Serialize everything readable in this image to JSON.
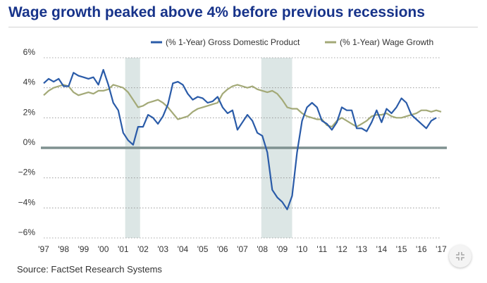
{
  "title": "Wage growth peaked above 4% before previous recessions",
  "source": "Source: FactSet Research Systems",
  "colors": {
    "gdp": "#2a5ba8",
    "wage": "#a3a977",
    "zero_line": "#7f9190",
    "recession": "#dce6e5",
    "title": "#17338a"
  },
  "icons": {
    "zoom": "collapse-arrows-icon"
  },
  "chart_data": {
    "type": "line",
    "title": "Wage growth peaked above 4% before previous recessions",
    "xlabel": "",
    "ylabel": "",
    "xlim": [
      1997.0,
      2017.0
    ],
    "ylim": [
      -6,
      6
    ],
    "x_ticks": [
      "'97",
      "'98",
      "'99",
      "'00",
      "'01",
      "'02",
      "'03",
      "'04",
      "'05",
      "'06",
      "'07",
      "'08",
      "'09",
      "'10",
      "'11",
      "'12",
      "'13",
      "'14",
      "'15",
      "'16",
      "'17"
    ],
    "y_ticks": [
      "6%",
      "4%",
      "2%",
      "0%",
      "−2%",
      "−4%",
      "−6%"
    ],
    "y_tick_values": [
      6,
      4,
      2,
      0,
      -2,
      -4,
      -6
    ],
    "legend_position": "top-right",
    "grid": "horizontal dotted",
    "recessions": [
      [
        2001.1,
        2001.85
      ],
      [
        2007.95,
        2009.5
      ]
    ],
    "series": [
      {
        "name": "(% 1-Year) Gross Domestic Product",
        "x": [
          1997.0,
          1997.25,
          1997.5,
          1997.75,
          1998.0,
          1998.25,
          1998.5,
          1998.75,
          1999.0,
          1999.25,
          1999.5,
          1999.75,
          2000.0,
          2000.25,
          2000.5,
          2000.75,
          2001.0,
          2001.25,
          2001.5,
          2001.75,
          2002.0,
          2002.25,
          2002.5,
          2002.75,
          2003.0,
          2003.25,
          2003.5,
          2003.75,
          2004.0,
          2004.25,
          2004.5,
          2004.75,
          2005.0,
          2005.25,
          2005.5,
          2005.75,
          2006.0,
          2006.25,
          2006.5,
          2006.75,
          2007.0,
          2007.25,
          2007.5,
          2007.75,
          2008.0,
          2008.25,
          2008.5,
          2008.75,
          2009.0,
          2009.25,
          2009.5,
          2009.75,
          2010.0,
          2010.25,
          2010.5,
          2010.75,
          2011.0,
          2011.25,
          2011.5,
          2011.75,
          2012.0,
          2012.25,
          2012.5,
          2012.75,
          2013.0,
          2013.25,
          2013.5,
          2013.75,
          2014.0,
          2014.25,
          2014.5,
          2014.75,
          2015.0,
          2015.25,
          2015.5,
          2015.75,
          2016.0,
          2016.25,
          2016.5,
          2016.75
        ],
        "values": [
          4.3,
          4.6,
          4.4,
          4.6,
          4.1,
          4.1,
          5.0,
          4.8,
          4.7,
          4.6,
          4.7,
          4.2,
          5.2,
          4.2,
          3.0,
          2.5,
          1.0,
          0.5,
          0.2,
          1.4,
          1.4,
          2.2,
          2.0,
          1.6,
          2.1,
          2.9,
          4.3,
          4.4,
          4.2,
          3.6,
          3.2,
          3.4,
          3.3,
          3.0,
          3.1,
          3.4,
          2.7,
          2.3,
          2.5,
          1.2,
          1.7,
          2.2,
          1.8,
          1.0,
          0.8,
          -0.3,
          -2.8,
          -3.3,
          -3.6,
          -4.1,
          -3.2,
          -0.3,
          1.8,
          2.7,
          3.0,
          2.7,
          1.8,
          1.6,
          1.2,
          1.7,
          2.7,
          2.5,
          2.5,
          1.3,
          1.3,
          1.1,
          1.7,
          2.5,
          1.7,
          2.6,
          2.3,
          2.7,
          3.3,
          3.0,
          2.2,
          1.9,
          1.6,
          1.3,
          1.8,
          2.0
        ]
      },
      {
        "name": "(% 1-Year) Wage Growth",
        "x": [
          1997.0,
          1997.25,
          1997.5,
          1997.75,
          1998.0,
          1998.25,
          1998.5,
          1998.75,
          1999.0,
          1999.25,
          1999.5,
          1999.75,
          2000.0,
          2000.25,
          2000.5,
          2000.75,
          2001.0,
          2001.25,
          2001.5,
          2001.75,
          2002.0,
          2002.25,
          2002.5,
          2002.75,
          2003.0,
          2003.25,
          2003.5,
          2003.75,
          2004.0,
          2004.25,
          2004.5,
          2004.75,
          2005.0,
          2005.25,
          2005.5,
          2005.75,
          2006.0,
          2006.25,
          2006.5,
          2006.75,
          2007.0,
          2007.25,
          2007.5,
          2007.75,
          2008.0,
          2008.25,
          2008.5,
          2008.75,
          2009.0,
          2009.25,
          2009.5,
          2009.75,
          2010.0,
          2010.25,
          2010.5,
          2010.75,
          2011.0,
          2011.25,
          2011.5,
          2011.75,
          2012.0,
          2012.25,
          2012.5,
          2012.75,
          2013.0,
          2013.25,
          2013.5,
          2013.75,
          2014.0,
          2014.25,
          2014.5,
          2014.75,
          2015.0,
          2015.25,
          2015.5,
          2015.75,
          2016.0,
          2016.25,
          2016.5,
          2016.75,
          2017.0
        ],
        "values": [
          3.5,
          3.8,
          4.0,
          4.1,
          4.2,
          4.1,
          3.7,
          3.5,
          3.6,
          3.7,
          3.6,
          3.8,
          3.8,
          3.9,
          4.2,
          4.1,
          4.0,
          3.7,
          3.2,
          2.7,
          2.8,
          3.0,
          3.1,
          3.2,
          3.0,
          2.7,
          2.3,
          1.9,
          2.0,
          2.1,
          2.4,
          2.6,
          2.7,
          2.8,
          2.9,
          3.0,
          3.6,
          3.9,
          4.1,
          4.2,
          4.1,
          4.0,
          4.1,
          3.9,
          3.8,
          3.7,
          3.8,
          3.6,
          3.2,
          2.7,
          2.6,
          2.6,
          2.3,
          2.1,
          2.0,
          1.9,
          1.9,
          1.5,
          1.4,
          1.8,
          2.0,
          1.8,
          1.6,
          1.4,
          1.6,
          1.8,
          2.1,
          2.2,
          2.2,
          2.3,
          2.1,
          2.0,
          2.0,
          2.1,
          2.2,
          2.3,
          2.5,
          2.5,
          2.4,
          2.5,
          2.4
        ]
      }
    ]
  }
}
